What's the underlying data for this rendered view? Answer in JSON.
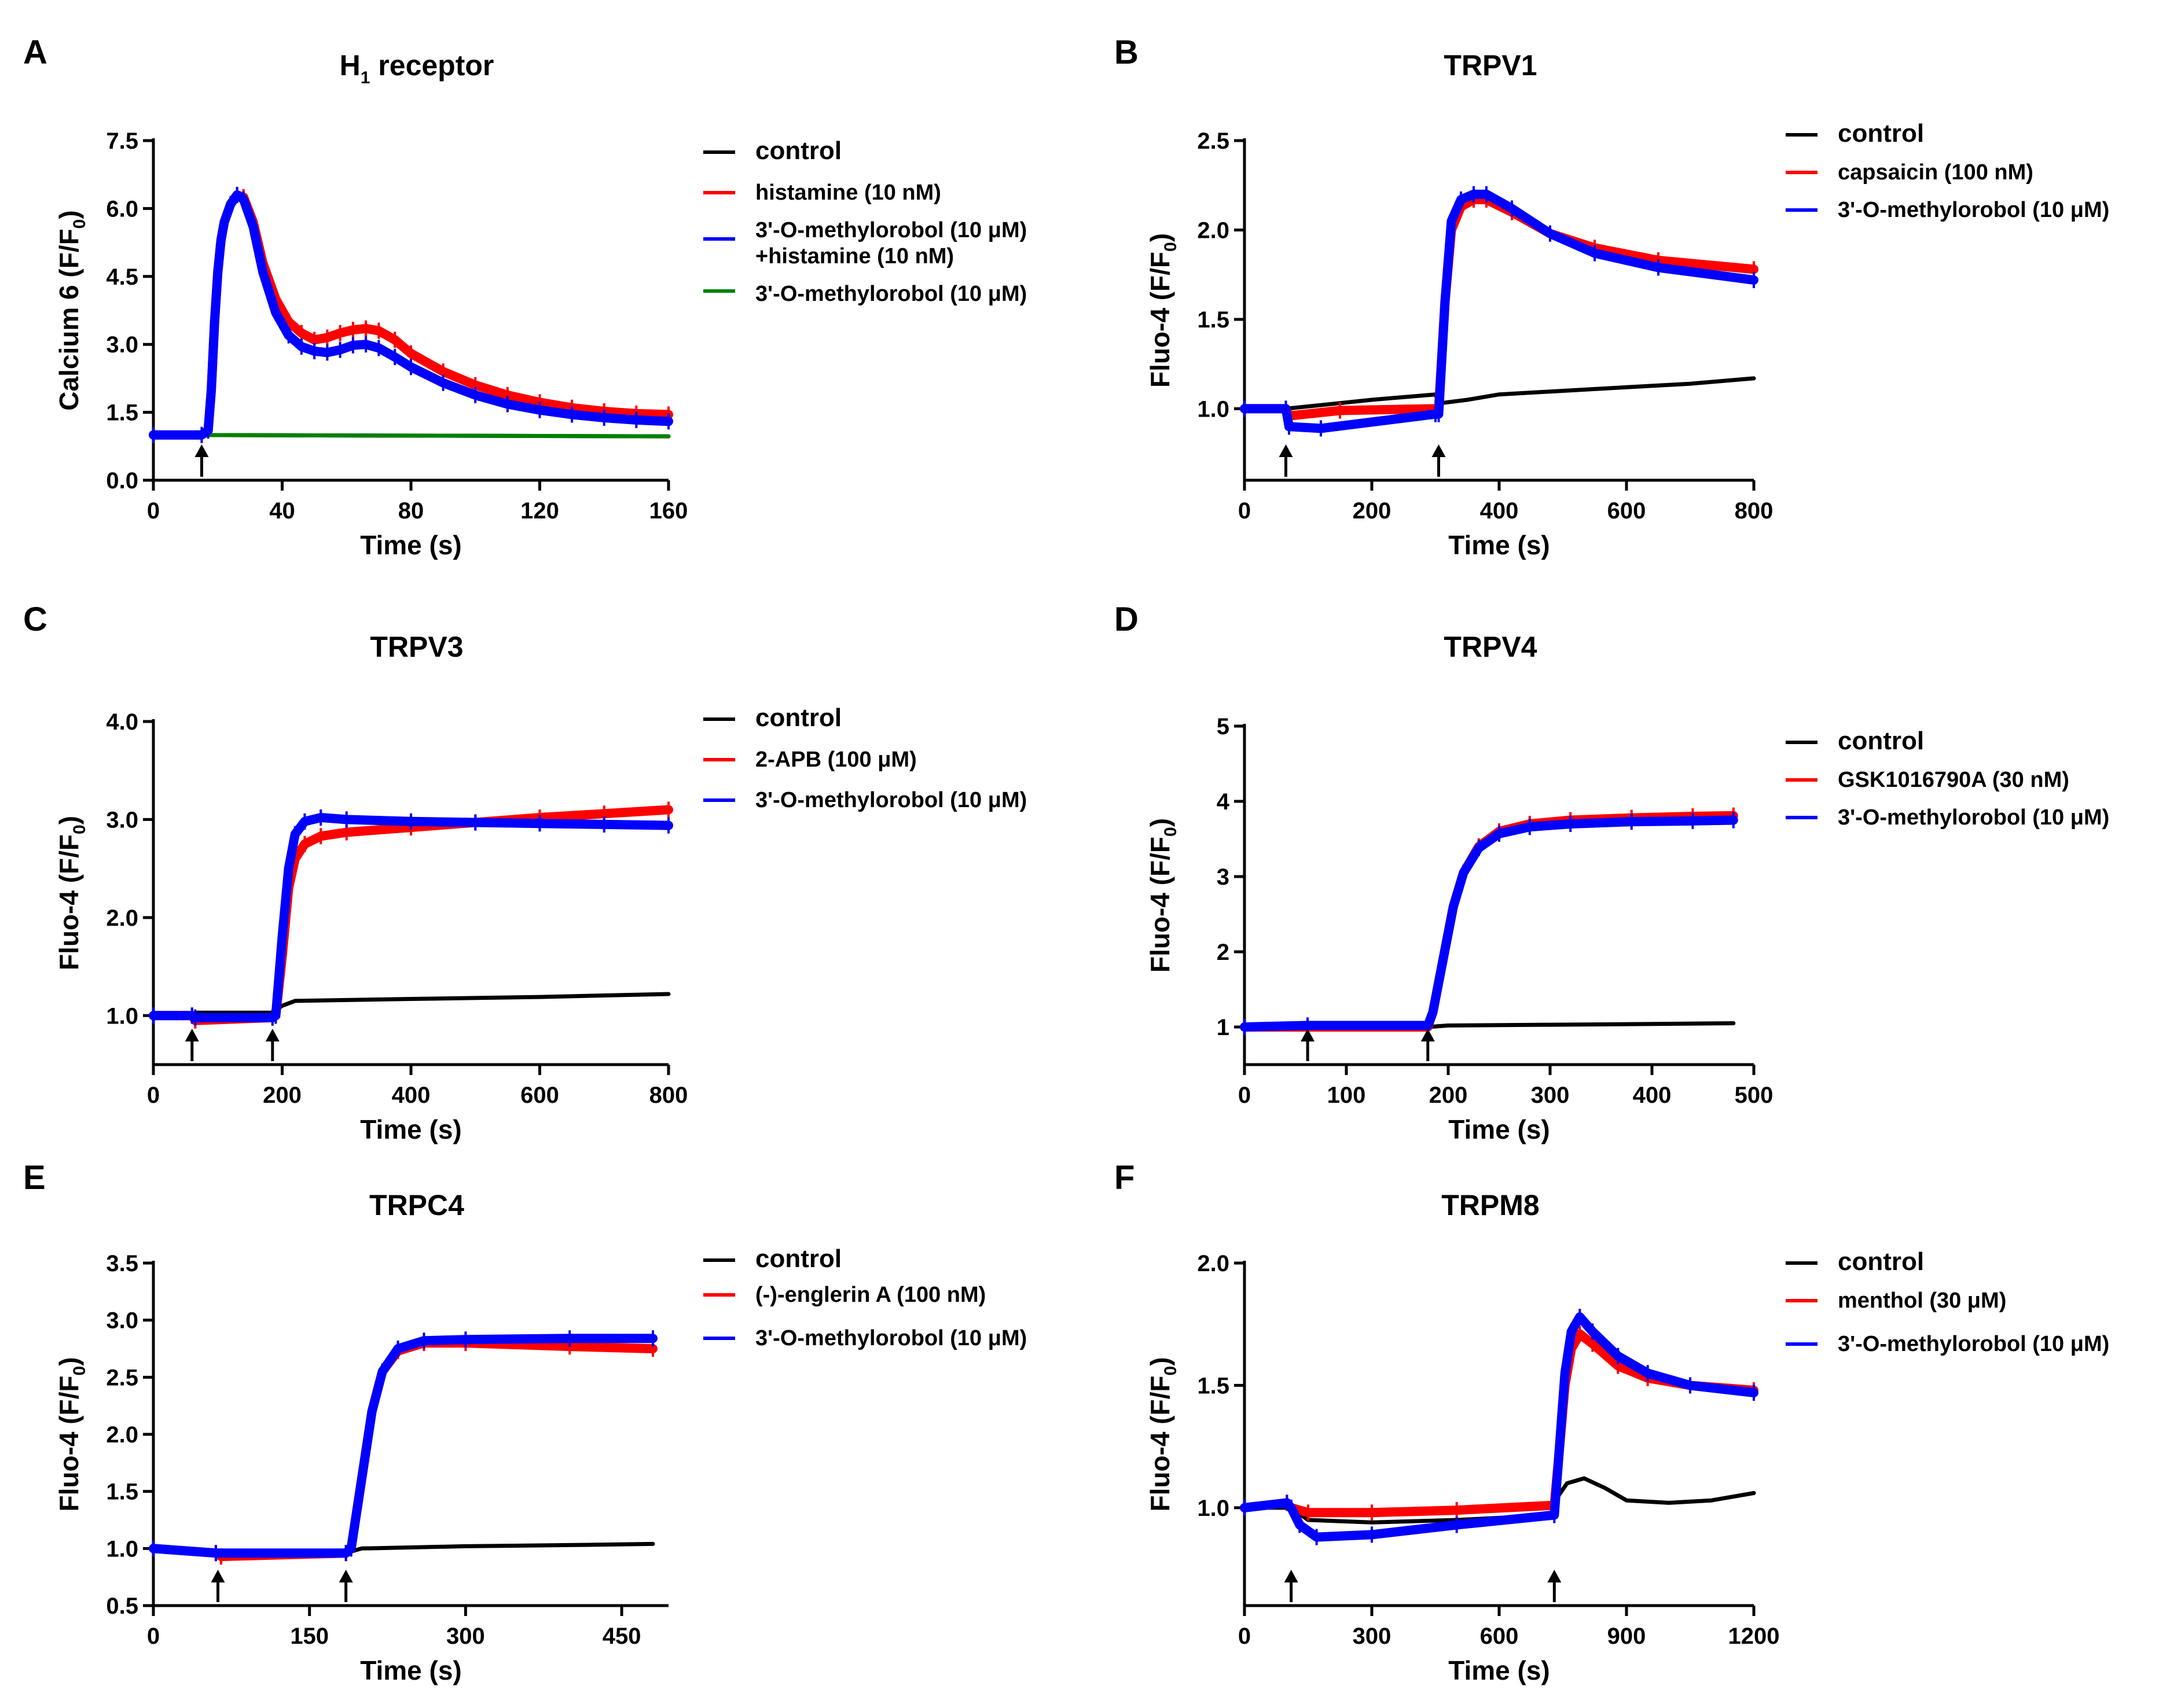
{
  "panels": [
    {
      "letter": "A",
      "title": "H",
      "title_sub": "1",
      "title_rest": " receptor",
      "ylabel": "Calcium 6 (F/F",
      "ylabel_sub": "0",
      "ylabel_end": ")",
      "xlabel": "Time (s)",
      "xticks": [
        0,
        40,
        80,
        120,
        160
      ],
      "yticks": [
        "0.0",
        "1.5",
        "3.0",
        "4.5",
        "6.0",
        "7.5"
      ],
      "legend": [
        "control",
        "histamine (10 nM)",
        "3'-O-methylorobol (10 μM)",
        "+histamine (10 nM)",
        "3'-O-methylorobol (10 μM)"
      ]
    },
    {
      "letter": "B",
      "title": "TRPV1",
      "ylabel": "Fluo-4 (F/F",
      "ylabel_sub": "0",
      "ylabel_end": ")",
      "xlabel": "Time (s)",
      "xticks": [
        0,
        200,
        400,
        600,
        800
      ],
      "yticks": [
        "1.0",
        "1.5",
        "2.0",
        "2.5"
      ],
      "legend": [
        "control",
        "capsaicin (100 nM)",
        "3'-O-methylorobol (10 μM)"
      ]
    },
    {
      "letter": "C",
      "title": "TRPV3",
      "ylabel": "Fluo-4 (F/F",
      "ylabel_sub": "0",
      "ylabel_end": ")",
      "xlabel": "Time (s)",
      "xticks": [
        0,
        200,
        400,
        600,
        800
      ],
      "yticks": [
        "1.0",
        "2.0",
        "3.0",
        "4.0"
      ],
      "legend": [
        "control",
        "2-APB (100 μM)",
        "3'-O-methylorobol (10 μM)"
      ]
    },
    {
      "letter": "D",
      "title": "TRPV4",
      "ylabel": "Fluo-4 (F/F",
      "ylabel_sub": "0",
      "ylabel_end": ")",
      "xlabel": "Time (s)",
      "xticks": [
        0,
        100,
        200,
        300,
        400,
        500
      ],
      "yticks": [
        "1",
        "2",
        "3",
        "4",
        "5"
      ],
      "legend": [
        "control",
        "GSK1016790A (30 nM)",
        "3'-O-methylorobol (10 μM)"
      ]
    },
    {
      "letter": "E",
      "title": "TRPC4",
      "ylabel": "Fluo-4 (F/F",
      "ylabel_sub": "0",
      "ylabel_end": ")",
      "xlabel": "Time (s)",
      "xticks": [
        0,
        150,
        300,
        450
      ],
      "yticks": [
        "0.5",
        "1.0",
        "1.5",
        "2.0",
        "2.5",
        "3.0",
        "3.5"
      ],
      "legend": [
        "control",
        "(-)-englerin A (100 nM)",
        "3'-O-methylorobol (10 μM)"
      ]
    },
    {
      "letter": "F",
      "title": "TRPM8",
      "ylabel": "Fluo-4 (F/F",
      "ylabel_sub": "0",
      "ylabel_end": ")",
      "xlabel": "Time (s)",
      "xticks": [
        0,
        300,
        600,
        900,
        1200
      ],
      "yticks": [
        "1.0",
        "1.5",
        "2.0"
      ],
      "legend": [
        "control",
        "menthol (30 μM)",
        "3'-O-methylorobol  (10 μM)"
      ]
    }
  ],
  "colors": {
    "control": "#000000",
    "agonist": "#ff0000",
    "compound": "#0000ff",
    "compound_alone": "#008000"
  },
  "chart_data": [
    {
      "type": "line",
      "title": "H1 receptor",
      "xlabel": "Time (s)",
      "ylabel": "Calcium 6 (F/F0)",
      "xlim": [
        0,
        160
      ],
      "ylim": [
        0,
        7.5
      ],
      "arrows_x": [
        15
      ],
      "series": [
        {
          "name": "control",
          "color": "#000000",
          "x": [
            0,
            160
          ],
          "y": [
            1.0,
            0.97
          ]
        },
        {
          "name": "histamine (10 nM)",
          "color": "#ff0000",
          "x": [
            0,
            15,
            17,
            18,
            19,
            20,
            21,
            22,
            24,
            26,
            28,
            31,
            34,
            38,
            42,
            46,
            50,
            54,
            58,
            62,
            66,
            70,
            75,
            80,
            90,
            100,
            110,
            120,
            130,
            140,
            150,
            160
          ],
          "y": [
            1.0,
            1.0,
            1.1,
            2.0,
            3.5,
            4.6,
            5.3,
            5.7,
            6.1,
            6.3,
            6.25,
            5.7,
            4.8,
            4.0,
            3.5,
            3.25,
            3.1,
            3.15,
            3.25,
            3.32,
            3.35,
            3.3,
            3.1,
            2.8,
            2.4,
            2.1,
            1.88,
            1.72,
            1.6,
            1.52,
            1.47,
            1.45
          ]
        },
        {
          "name": "3'-O-methylorobol (10 μM) +histamine (10 nM)",
          "color": "#0000ff",
          "x": [
            0,
            15,
            17,
            18,
            19,
            20,
            21,
            22,
            24,
            26,
            28,
            31,
            34,
            38,
            42,
            46,
            50,
            54,
            58,
            62,
            66,
            70,
            75,
            80,
            90,
            100,
            110,
            120,
            130,
            140,
            150,
            160
          ],
          "y": [
            1.0,
            1.0,
            1.1,
            2.0,
            3.5,
            4.6,
            5.3,
            5.7,
            6.1,
            6.3,
            6.2,
            5.6,
            4.6,
            3.7,
            3.2,
            2.95,
            2.85,
            2.82,
            2.88,
            2.98,
            3.0,
            2.92,
            2.72,
            2.5,
            2.15,
            1.88,
            1.68,
            1.55,
            1.45,
            1.38,
            1.33,
            1.3
          ]
        },
        {
          "name": "3'-O-methylorobol (10 μM)",
          "color": "#008000",
          "x": [
            0,
            160
          ],
          "y": [
            1.0,
            0.97
          ]
        }
      ]
    },
    {
      "type": "line",
      "title": "TRPV1",
      "xlabel": "Time (s)",
      "ylabel": "Fluo-4 (F/F0)",
      "xlim": [
        0,
        800
      ],
      "ylim": [
        0.6,
        2.5
      ],
      "arrows_x": [
        65,
        305
      ],
      "series": [
        {
          "name": "control",
          "color": "#000000",
          "x": [
            0,
            65,
            200,
            300,
            305,
            350,
            400,
            500,
            600,
            700,
            800
          ],
          "y": [
            1.0,
            1.0,
            1.05,
            1.08,
            1.03,
            1.05,
            1.08,
            1.1,
            1.12,
            1.14,
            1.17
          ]
        },
        {
          "name": "capsaicin (100 nM)",
          "color": "#ff0000",
          "x": [
            0,
            65,
            70,
            150,
            300,
            305,
            315,
            325,
            340,
            360,
            380,
            420,
            480,
            550,
            650,
            800
          ],
          "y": [
            1.0,
            1.0,
            0.96,
            0.99,
            1.0,
            1.0,
            1.6,
            2.0,
            2.13,
            2.17,
            2.17,
            2.1,
            1.98,
            1.9,
            1.83,
            1.78
          ]
        },
        {
          "name": "3'-O-methylorobol (10 μM)",
          "color": "#0000ff",
          "x": [
            0,
            65,
            70,
            120,
            300,
            305,
            315,
            325,
            340,
            360,
            380,
            420,
            480,
            550,
            650,
            800
          ],
          "y": [
            1.0,
            1.0,
            0.9,
            0.89,
            0.97,
            0.97,
            1.6,
            2.05,
            2.17,
            2.2,
            2.2,
            2.12,
            1.98,
            1.87,
            1.79,
            1.72
          ]
        }
      ]
    },
    {
      "type": "line",
      "title": "TRPV3",
      "xlabel": "Time (s)",
      "ylabel": "Fluo-4 (F/F0)",
      "xlim": [
        0,
        800
      ],
      "ylim": [
        0.5,
        4.0
      ],
      "arrows_x": [
        60,
        185
      ],
      "series": [
        {
          "name": "control",
          "color": "#000000",
          "x": [
            0,
            60,
            65,
            185,
            200,
            220,
            400,
            600,
            800
          ],
          "y": [
            1.0,
            1.0,
            1.03,
            1.03,
            1.1,
            1.15,
            1.17,
            1.19,
            1.22
          ]
        },
        {
          "name": "2-APB (100 μM)",
          "color": "#ff0000",
          "x": [
            0,
            60,
            65,
            185,
            190,
            200,
            210,
            220,
            235,
            260,
            300,
            400,
            500,
            600,
            700,
            800
          ],
          "y": [
            1.0,
            1.0,
            0.95,
            0.98,
            1.0,
            1.6,
            2.3,
            2.6,
            2.75,
            2.83,
            2.87,
            2.92,
            2.97,
            3.02,
            3.06,
            3.1
          ]
        },
        {
          "name": "3'-O-methylorobol (10 μM)",
          "color": "#0000ff",
          "x": [
            0,
            60,
            65,
            185,
            190,
            200,
            210,
            220,
            235,
            260,
            300,
            400,
            500,
            600,
            700,
            800
          ],
          "y": [
            1.0,
            1.0,
            0.98,
            0.98,
            1.0,
            1.8,
            2.5,
            2.85,
            2.98,
            3.02,
            3.0,
            2.98,
            2.97,
            2.96,
            2.95,
            2.94
          ]
        }
      ]
    },
    {
      "type": "line",
      "title": "TRPV4",
      "xlabel": "Time (s)",
      "ylabel": "Fluo-4 (F/F0)",
      "xlim": [
        0,
        500
      ],
      "ylim": [
        0.5,
        5
      ],
      "arrows_x": [
        62,
        180
      ],
      "series": [
        {
          "name": "control",
          "color": "#000000",
          "x": [
            0,
            180,
            200,
            300,
            400,
            480
          ],
          "y": [
            1.0,
            1.0,
            1.02,
            1.03,
            1.04,
            1.05
          ]
        },
        {
          "name": "GSK1016790A (30 nM)",
          "color": "#ff0000",
          "x": [
            0,
            62,
            180,
            185,
            195,
            205,
            215,
            230,
            250,
            280,
            320,
            380,
            440,
            480
          ],
          "y": [
            1.0,
            1.0,
            1.0,
            1.2,
            1.9,
            2.6,
            3.05,
            3.4,
            3.6,
            3.7,
            3.75,
            3.78,
            3.8,
            3.81
          ]
        },
        {
          "name": "3'-O-methylorobol (10 μM)",
          "color": "#0000ff",
          "x": [
            0,
            62,
            180,
            185,
            195,
            205,
            215,
            230,
            250,
            280,
            320,
            380,
            440,
            480
          ],
          "y": [
            1.0,
            1.02,
            1.02,
            1.2,
            1.9,
            2.6,
            3.05,
            3.38,
            3.57,
            3.66,
            3.7,
            3.73,
            3.74,
            3.75
          ]
        }
      ]
    },
    {
      "type": "line",
      "title": "TRPC4",
      "xlabel": "Time (s)",
      "ylabel": "Fluo-4 (F/F0)",
      "xlim": [
        0,
        495
      ],
      "ylim": [
        0.5,
        3.5
      ],
      "arrows_x": [
        62,
        185
      ],
      "series": [
        {
          "name": "control",
          "color": "#000000",
          "x": [
            0,
            60,
            185,
            200,
            300,
            400,
            480
          ],
          "y": [
            1.0,
            0.96,
            0.96,
            1.0,
            1.02,
            1.03,
            1.04
          ]
        },
        {
          "name": "(-)-englerin A (100 nM)",
          "color": "#ff0000",
          "x": [
            0,
            60,
            65,
            185,
            190,
            200,
            210,
            220,
            235,
            260,
            300,
            400,
            480
          ],
          "y": [
            1.0,
            0.96,
            0.93,
            0.96,
            1.0,
            1.6,
            2.2,
            2.55,
            2.73,
            2.8,
            2.8,
            2.77,
            2.75
          ]
        },
        {
          "name": "3'-O-methylorobol (10 μM)",
          "color": "#0000ff",
          "x": [
            0,
            60,
            185,
            190,
            200,
            210,
            220,
            235,
            260,
            300,
            400,
            480
          ],
          "y": [
            1.0,
            0.96,
            0.96,
            1.0,
            1.6,
            2.2,
            2.55,
            2.75,
            2.82,
            2.83,
            2.84,
            2.84
          ]
        }
      ]
    },
    {
      "type": "line",
      "title": "TRPM8",
      "xlabel": "Time (s)",
      "ylabel": "Fluo-4 (F/F0)",
      "xlim": [
        0,
        1200
      ],
      "ylim": [
        0.6,
        2.0
      ],
      "arrows_x": [
        110,
        730
      ],
      "series": [
        {
          "name": "control",
          "color": "#000000",
          "x": [
            0,
            110,
            150,
            300,
            500,
            730,
            740,
            760,
            800,
            850,
            900,
            1000,
            1100,
            1200
          ],
          "y": [
            1.0,
            1.0,
            0.95,
            0.94,
            0.95,
            0.97,
            1.05,
            1.1,
            1.12,
            1.08,
            1.03,
            1.02,
            1.03,
            1.06
          ]
        },
        {
          "name": "menthol (30 μM)",
          "color": "#ff0000",
          "x": [
            0,
            100,
            110,
            150,
            300,
            500,
            730,
            740,
            755,
            770,
            790,
            820,
            880,
            950,
            1050,
            1200
          ],
          "y": [
            1.0,
            1.02,
            1.0,
            0.98,
            0.98,
            0.99,
            1.01,
            1.2,
            1.5,
            1.65,
            1.71,
            1.67,
            1.58,
            1.53,
            1.5,
            1.48
          ]
        },
        {
          "name": "3'-O-methylorobol  (10 μM)",
          "color": "#0000ff",
          "x": [
            0,
            100,
            110,
            130,
            170,
            300,
            500,
            730,
            740,
            755,
            770,
            790,
            820,
            880,
            950,
            1050,
            1200
          ],
          "y": [
            1.0,
            1.02,
            1.0,
            0.93,
            0.88,
            0.89,
            0.93,
            0.97,
            1.2,
            1.55,
            1.72,
            1.78,
            1.72,
            1.62,
            1.55,
            1.5,
            1.47
          ]
        }
      ]
    }
  ]
}
